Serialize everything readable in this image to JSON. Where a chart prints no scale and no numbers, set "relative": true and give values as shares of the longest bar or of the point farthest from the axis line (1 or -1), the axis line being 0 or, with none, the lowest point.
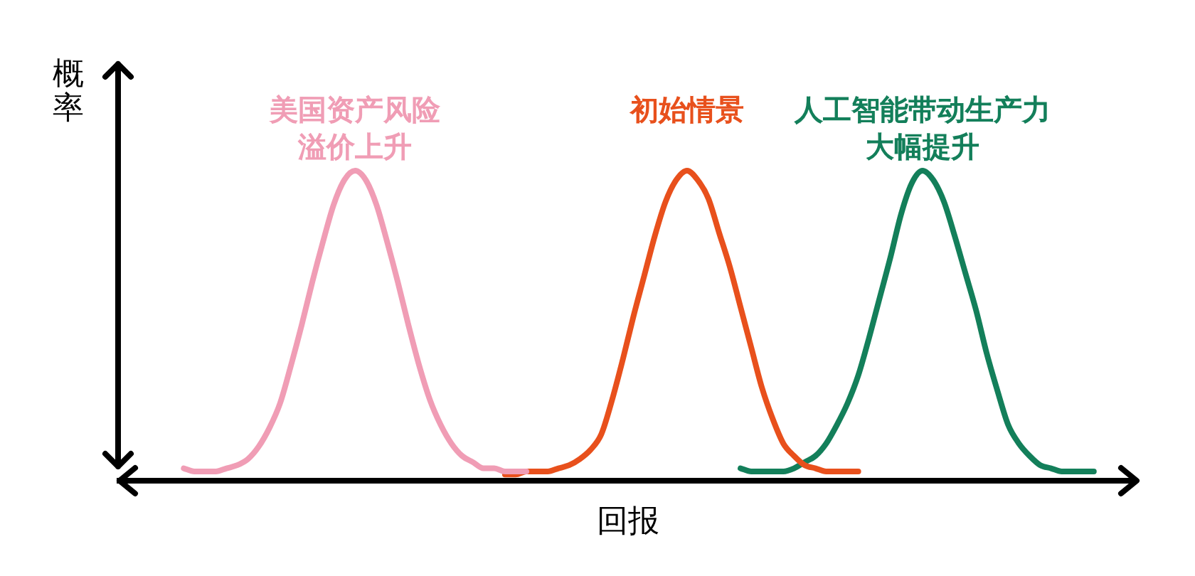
{
  "chart_data": {
    "type": "line",
    "relative": true,
    "xlabel": "回报",
    "ylabel": "概率",
    "line_style": "solid",
    "categories": [
      null,
      null,
      null,
      null,
      null,
      null,
      null,
      null,
      null,
      null,
      null,
      null,
      null,
      null,
      null,
      null,
      null,
      null,
      null,
      null,
      null,
      null,
      null,
      null,
      null,
      null,
      null,
      null,
      null,
      null,
      null,
      null,
      null,
      null,
      null,
      null,
      null,
      null,
      null,
      null,
      null,
      null,
      null,
      null,
      null,
      null,
      null,
      null,
      null,
      null,
      null,
      null,
      null,
      null,
      null,
      null,
      null,
      null,
      null,
      null,
      null,
      null,
      null,
      null,
      null,
      null,
      null,
      null,
      null,
      null,
      null,
      null,
      null,
      null,
      null,
      null,
      null,
      null,
      null,
      null,
      null,
      null,
      null,
      null,
      null,
      null,
      null,
      null,
      null,
      null,
      null,
      null,
      null,
      null,
      null,
      null
    ],
    "series": [
      {
        "name": "美国资产风险溢价上升",
        "color": "#f09db5",
        "values": [
          null,
          null,
          null,
          null,
          null,
          null,
          0.04,
          0.03,
          0.03,
          0.03,
          0.04,
          0.05,
          0.07,
          0.11,
          0.17,
          0.25,
          0.37,
          0.5,
          0.64,
          0.77,
          0.89,
          0.97,
          1,
          0.97,
          0.89,
          0.77,
          0.64,
          0.5,
          0.37,
          0.26,
          0.18,
          0.12,
          0.08,
          0.06,
          0.04,
          0.04,
          0.03,
          0.03,
          0.03,
          null,
          null,
          null,
          null,
          null,
          null,
          null,
          null,
          null,
          null,
          null,
          null,
          null,
          null,
          null,
          null,
          null,
          null,
          null,
          null,
          null,
          null,
          null,
          null,
          null,
          null,
          null,
          null,
          null,
          null,
          null,
          null,
          null,
          null,
          null,
          null,
          null,
          null,
          null,
          null,
          null,
          null,
          null,
          null,
          null,
          null,
          null,
          null,
          null,
          null,
          null,
          null,
          null,
          null,
          null,
          null,
          null
        ]
      },
      {
        "name": "初始情景",
        "color": "#e8501c",
        "values": [
          null,
          null,
          null,
          null,
          null,
          null,
          null,
          null,
          null,
          null,
          null,
          null,
          null,
          null,
          null,
          null,
          null,
          null,
          null,
          null,
          null,
          null,
          null,
          null,
          null,
          null,
          null,
          null,
          null,
          null,
          null,
          null,
          null,
          null,
          null,
          null,
          0.02,
          0.02,
          0.03,
          0.03,
          0.03,
          0.04,
          0.05,
          0.07,
          0.1,
          0.15,
          0.26,
          0.39,
          0.53,
          0.66,
          0.79,
          0.9,
          0.97,
          1,
          0.97,
          0.91,
          0.8,
          0.69,
          0.56,
          0.43,
          0.3,
          0.2,
          0.12,
          0.08,
          0.05,
          0.04,
          0.03,
          0.03,
          0.03,
          0.03,
          null,
          null,
          null,
          null,
          null,
          null,
          null,
          null,
          null,
          null,
          null,
          null,
          null,
          null,
          null,
          null,
          null,
          null,
          null,
          null,
          null,
          null,
          null,
          null,
          null,
          null
        ]
      },
      {
        "name": "人工智能带动生产力大幅提升",
        "color": "#137f5a",
        "values": [
          null,
          null,
          null,
          null,
          null,
          null,
          null,
          null,
          null,
          null,
          null,
          null,
          null,
          null,
          null,
          null,
          null,
          null,
          null,
          null,
          null,
          null,
          null,
          null,
          null,
          null,
          null,
          null,
          null,
          null,
          null,
          null,
          null,
          null,
          null,
          null,
          null,
          null,
          null,
          null,
          null,
          null,
          null,
          null,
          null,
          null,
          null,
          null,
          null,
          null,
          null,
          null,
          null,
          null,
          null,
          null,
          null,
          null,
          0.04,
          0.03,
          0.03,
          0.03,
          0.03,
          0.04,
          0.06,
          0.08,
          0.12,
          0.18,
          0.25,
          0.34,
          0.46,
          0.59,
          0.72,
          0.86,
          0.96,
          1,
          0.97,
          0.9,
          0.79,
          0.67,
          0.55,
          0.41,
          0.29,
          0.18,
          0.12,
          0.08,
          0.05,
          0.04,
          0.03,
          0.03,
          0.03,
          0.03,
          null,
          null,
          null,
          null
        ]
      }
    ]
  }
}
